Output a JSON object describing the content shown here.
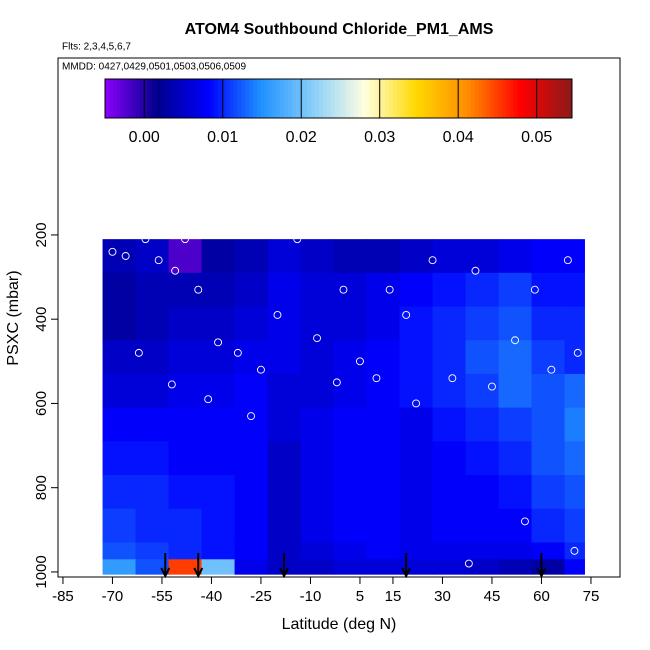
{
  "chart_data": {
    "type": "heatmap",
    "title": "ATOM4 Southbound Chloride_PM1_AMS",
    "subtitle": "Flts: 2,3,4,5,6,7",
    "annotation": "MMDD: 0427,0429,0501,0503,0506,0509",
    "x_label": "Latitude (deg N)",
    "y_label": "PSXC (mbar)",
    "xlim": [
      -86.5,
      83.8
    ],
    "xticks": [
      -85,
      -70,
      -55,
      -40,
      -25,
      -10,
      5,
      15,
      30,
      45,
      60,
      75
    ],
    "ylim": [
      1012,
      -220
    ],
    "yticks": [
      200,
      400,
      600,
      800,
      1000
    ],
    "clim": [
      -0.005,
      0.0545
    ],
    "cticks": [
      {
        "value": 0,
        "label": "0.00"
      },
      {
        "value": 0.01,
        "label": "0.01"
      },
      {
        "value": 0.02,
        "label": "0.02"
      },
      {
        "value": 0.03,
        "label": "0.03"
      },
      {
        "value": 0.04,
        "label": "0.04"
      },
      {
        "value": 0.05,
        "label": "0.05"
      }
    ],
    "colormap": [
      "#8b00ff",
      "#00008b",
      "#0000ff",
      "#1e90ff",
      "#87cefa",
      "#ffffe0",
      "#ffd700",
      "#ff8c00",
      "#ff0000",
      "#8b1a1a"
    ],
    "heatmap": {
      "x_edges": [
        -73,
        -63,
        -53,
        -43,
        -33,
        -23,
        -13,
        -3,
        7,
        17,
        27,
        37,
        47,
        57,
        67,
        73
      ],
      "y_edges": [
        210,
        290,
        370,
        450,
        530,
        610,
        690,
        770,
        850,
        930,
        970,
        1005
      ],
      "values": [
        [
          0.004,
          0.005,
          -0.002,
          0.003,
          0.004,
          0.006,
          0.005,
          0.004,
          0.004,
          0.005,
          0.006,
          0.006,
          0.007,
          0.008,
          0.008
        ],
        [
          0.003,
          0.004,
          0.004,
          0.004,
          0.005,
          0.007,
          0.006,
          0.006,
          0.007,
          0.008,
          0.009,
          0.01,
          0.011,
          0.009,
          0.009
        ],
        [
          0.003,
          0.004,
          0.005,
          0.005,
          0.006,
          0.007,
          0.006,
          0.006,
          0.007,
          0.009,
          0.01,
          0.011,
          0.012,
          0.01,
          0.01
        ],
        [
          0.005,
          0.005,
          0.006,
          0.006,
          0.007,
          0.007,
          0.006,
          0.007,
          0.008,
          0.009,
          0.01,
          0.012,
          0.013,
          0.011,
          0.01
        ],
        [
          0.006,
          0.006,
          0.007,
          0.007,
          0.008,
          0.006,
          0.006,
          0.007,
          0.008,
          0.009,
          0.01,
          0.011,
          0.013,
          0.012,
          0.013
        ],
        [
          0.008,
          0.008,
          0.008,
          0.008,
          0.008,
          0.006,
          0.007,
          0.008,
          0.008,
          0.007,
          0.009,
          0.01,
          0.011,
          0.012,
          0.014
        ],
        [
          0.009,
          0.009,
          0.008,
          0.008,
          0.008,
          0.005,
          0.007,
          0.008,
          0.008,
          0.007,
          0.008,
          0.009,
          0.01,
          0.012,
          0.013
        ],
        [
          0.01,
          0.01,
          0.009,
          0.009,
          0.008,
          0.005,
          0.007,
          0.008,
          0.008,
          0.007,
          0.008,
          0.008,
          0.009,
          0.011,
          0.012
        ],
        [
          0.011,
          0.01,
          0.01,
          0.009,
          0.008,
          0.005,
          0.007,
          0.008,
          0.008,
          0.007,
          0.008,
          0.008,
          0.008,
          0.01,
          0.011
        ],
        [
          0.012,
          0.011,
          0.01,
          0.009,
          0.008,
          0.005,
          0.006,
          0.007,
          0.008,
          0.007,
          0.007,
          0.007,
          0.007,
          0.008,
          0.01
        ],
        [
          0.016,
          0.012,
          0.045,
          0.02,
          0.007,
          0.005,
          0.005,
          0.006,
          0.006,
          0.006,
          0.006,
          0.005,
          0.004,
          0.003,
          0.008
        ]
      ]
    },
    "points": {
      "x": [
        -70,
        -66,
        -60,
        -56,
        -51,
        -48,
        -44,
        -38,
        -32,
        -25,
        -20,
        -14,
        -8,
        0,
        5,
        10,
        14,
        19,
        27,
        33,
        40,
        45,
        52,
        58,
        63,
        68,
        71,
        -62,
        -52,
        -41,
        -28,
        -2,
        22,
        38,
        55,
        70
      ],
      "y": [
        240,
        250,
        210,
        260,
        285,
        210,
        330,
        455,
        480,
        520,
        390,
        210,
        445,
        330,
        500,
        540,
        330,
        390,
        260,
        540,
        285,
        560,
        450,
        330,
        520,
        260,
        480,
        480,
        555,
        590,
        630,
        550,
        600,
        980,
        880,
        950
      ]
    },
    "arrows": [
      -54,
      -44,
      -18,
      19,
      60
    ]
  }
}
